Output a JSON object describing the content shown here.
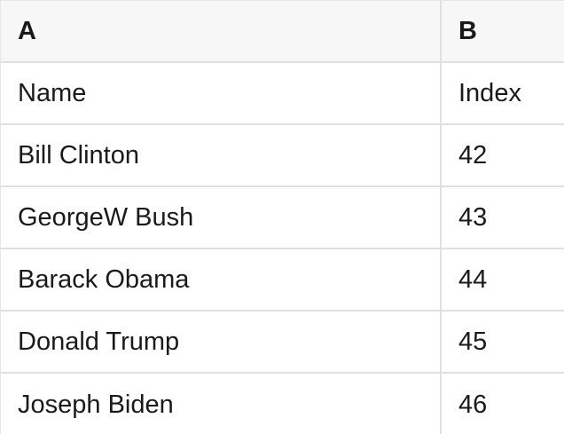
{
  "table": {
    "columns": [
      {
        "label": "A"
      },
      {
        "label": "B"
      }
    ],
    "rows": [
      [
        "Name",
        "Index"
      ],
      [
        "Bill Clinton",
        "42"
      ],
      [
        "GeorgeW Bush",
        "43"
      ],
      [
        "Barack Obama",
        "44"
      ],
      [
        "Donald Trump",
        "45"
      ],
      [
        "Joseph Biden",
        "46"
      ]
    ]
  },
  "colors": {
    "header_bg": "#f7f7f7",
    "cell_bg": "#ffffff",
    "border": "#e0e0e0",
    "outer_border": "#e6e6e6",
    "text": "#1a1a1a"
  }
}
